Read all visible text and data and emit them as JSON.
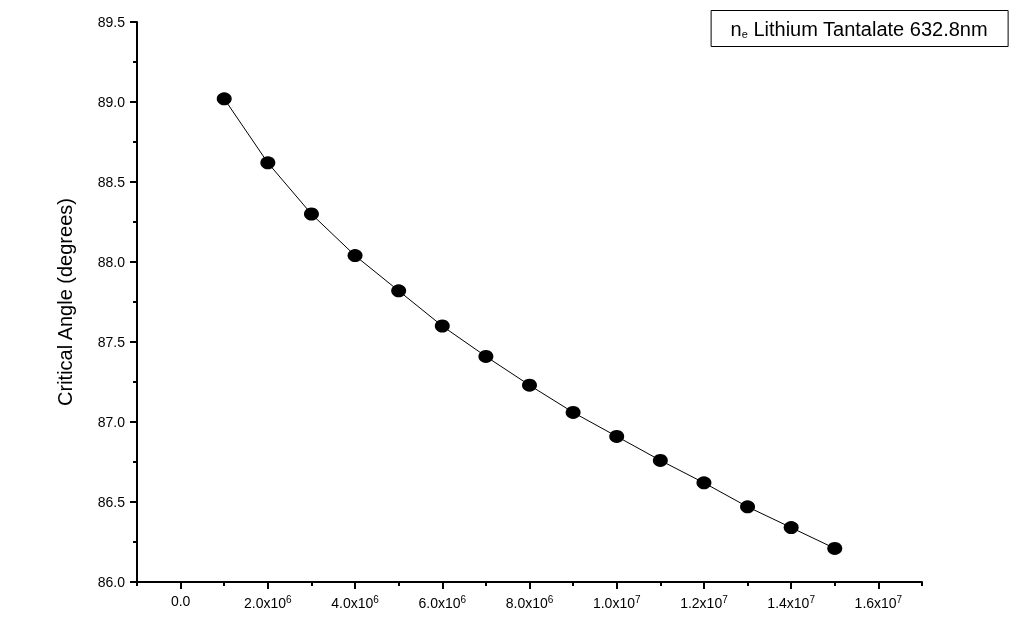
{
  "chart_data": {
    "type": "line",
    "title": "n$_{e}$ Lithium Tantalate 632.8nm",
    "ylabel": "Critical Angle (degrees)",
    "x": [
      1000000,
      2000000,
      3000000,
      4000000,
      5000000,
      6000000,
      7000000,
      8000000,
      9000000,
      10000000,
      11000000,
      12000000,
      13000000,
      14000000,
      15000000
    ],
    "series": [
      {
        "color": "#000000",
        "values": [
          89.02,
          88.62,
          88.3,
          88.04,
          87.82,
          87.6,
          87.41,
          87.23,
          87.06,
          86.91,
          86.76,
          86.62,
          86.47,
          86.34,
          86.21
        ]
      }
    ],
    "xlim": [
      -1000000,
      17000000
    ],
    "xticks": [
      {
        "value": -1000000,
        "label": null
      },
      {
        "value": 0,
        "label": "0.0"
      },
      {
        "value": 1000000,
        "label": null
      },
      {
        "value": 2000000,
        "label": "2.0x10$^{6}$"
      },
      {
        "value": 3000000,
        "label": null
      },
      {
        "value": 4000000,
        "label": "4.0x10$^{6}$"
      },
      {
        "value": 5000000,
        "label": null
      },
      {
        "value": 6000000,
        "label": "6.0x10$^{6}$"
      },
      {
        "value": 7000000,
        "label": null
      },
      {
        "value": 8000000,
        "label": "8.0x10$^{6}$"
      },
      {
        "value": 9000000,
        "label": null
      },
      {
        "value": 10000000,
        "label": "1.0x10$^{7}$"
      },
      {
        "value": 11000000,
        "label": null
      },
      {
        "value": 12000000,
        "label": "1.2x10$^{7}$"
      },
      {
        "value": 13000000,
        "label": null
      },
      {
        "value": 14000000,
        "label": "1.4x10$^{7}$"
      },
      {
        "value": 15000000,
        "label": null
      },
      {
        "value": 16000000,
        "label": "1.6x10$^{7}$"
      },
      {
        "value": 17000000,
        "label": null
      }
    ],
    "ylim": [
      86,
      89.5
    ],
    "yticks": [
      {
        "value": 86,
        "label": "86.0"
      },
      {
        "value": 86.25,
        "label": null
      },
      {
        "value": 86.5,
        "label": "86.5"
      },
      {
        "value": 86.75,
        "label": null
      },
      {
        "value": 87,
        "label": "87.0"
      },
      {
        "value": 87.25,
        "label": null
      },
      {
        "value": 87.5,
        "label": "87.5"
      },
      {
        "value": 87.75,
        "label": null
      },
      {
        "value": 88,
        "label": "88.0"
      },
      {
        "value": 88.25,
        "label": null
      },
      {
        "value": 88.5,
        "label": "88.5"
      },
      {
        "value": 88.75,
        "label": null
      },
      {
        "value": 89,
        "label": "89.0"
      },
      {
        "value": 89.25,
        "label": null
      },
      {
        "value": 89.5,
        "label": "89.5"
      }
    ],
    "grid": false,
    "marker": "circle",
    "line_style": "solid"
  }
}
